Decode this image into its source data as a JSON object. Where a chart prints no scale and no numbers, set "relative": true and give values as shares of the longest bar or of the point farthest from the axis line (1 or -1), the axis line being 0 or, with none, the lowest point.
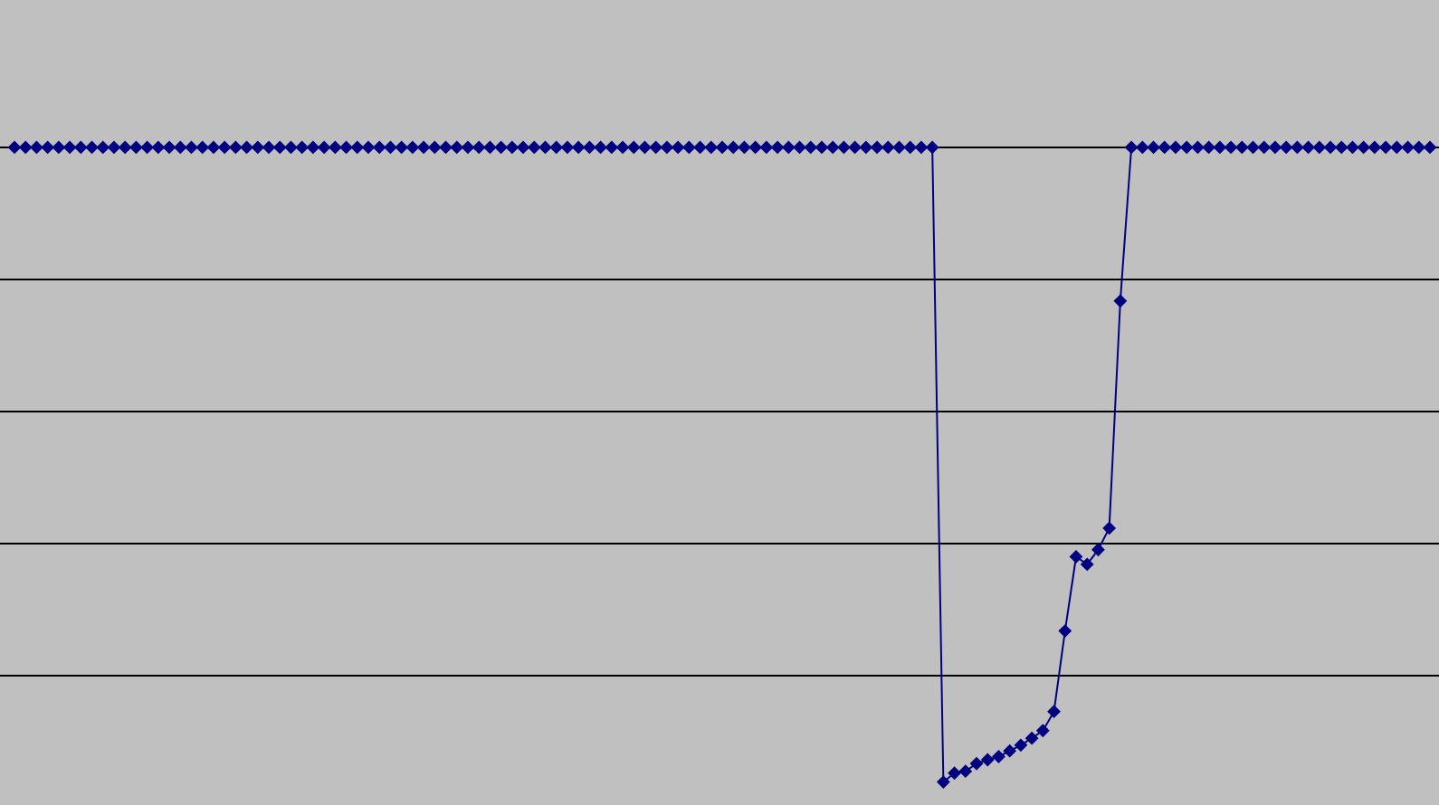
{
  "chart_data": {
    "type": "line",
    "relative": true,
    "legend": false,
    "marker": "diamond",
    "line_style": "solid",
    "ref_lines": [
      {
        "axis": "y",
        "value": 1,
        "color": "#000000"
      },
      {
        "axis": "y",
        "value": 0.792,
        "color": "#000000"
      },
      {
        "axis": "y",
        "value": 0.584,
        "color": "#000000"
      },
      {
        "axis": "y",
        "value": 0.376,
        "color": "#000000"
      },
      {
        "axis": "y",
        "value": 0.168,
        "color": "#000000"
      }
    ],
    "categories": [
      null,
      null,
      null,
      null,
      null,
      null,
      null,
      null,
      null,
      null,
      null,
      null,
      null,
      null,
      null,
      null,
      null,
      null,
      null,
      null,
      null,
      null,
      null,
      null,
      null,
      null,
      null,
      null,
      null,
      null,
      null,
      null,
      null,
      null,
      null,
      null,
      null,
      null,
      null,
      null,
      null,
      null,
      null,
      null,
      null,
      null,
      null,
      null,
      null,
      null,
      null,
      null,
      null,
      null,
      null,
      null,
      null,
      null,
      null,
      null,
      null,
      null,
      null,
      null,
      null,
      null,
      null,
      null,
      null,
      null,
      null,
      null,
      null,
      null,
      null,
      null,
      null,
      null,
      null,
      null,
      null,
      null,
      null,
      null,
      null,
      null,
      null,
      null,
      null,
      null,
      null,
      null,
      null,
      null,
      null,
      null,
      null,
      null,
      null,
      null,
      null,
      null,
      null,
      null,
      null,
      null,
      null,
      null,
      null,
      null,
      null,
      null,
      null,
      null,
      null,
      null,
      null,
      null,
      null,
      null,
      null,
      null,
      null,
      null,
      null,
      null,
      null,
      null,
      null
    ],
    "series": [
      {
        "color": "#000080",
        "values": [
          1,
          1,
          1,
          1,
          1,
          1,
          1,
          1,
          1,
          1,
          1,
          1,
          1,
          1,
          1,
          1,
          1,
          1,
          1,
          1,
          1,
          1,
          1,
          1,
          1,
          1,
          1,
          1,
          1,
          1,
          1,
          1,
          1,
          1,
          1,
          1,
          1,
          1,
          1,
          1,
          1,
          1,
          1,
          1,
          1,
          1,
          1,
          1,
          1,
          1,
          1,
          1,
          1,
          1,
          1,
          1,
          1,
          1,
          1,
          1,
          1,
          1,
          1,
          1,
          1,
          1,
          1,
          1,
          1,
          1,
          1,
          1,
          1,
          1,
          1,
          1,
          1,
          1,
          1,
          1,
          1,
          1,
          1,
          1,
          0,
          0.014,
          0.017,
          0.029,
          0.035,
          0.04,
          0.049,
          0.058,
          0.069,
          0.081,
          0.111,
          0.238,
          0.355,
          0.343,
          0.366,
          0.4,
          0.758,
          1,
          1,
          1,
          1,
          1,
          1,
          1,
          1,
          1,
          1,
          1,
          1,
          1,
          1,
          1,
          1,
          1,
          1,
          1,
          1,
          1,
          1,
          1,
          1,
          1,
          1,
          1,
          1
        ]
      }
    ]
  }
}
